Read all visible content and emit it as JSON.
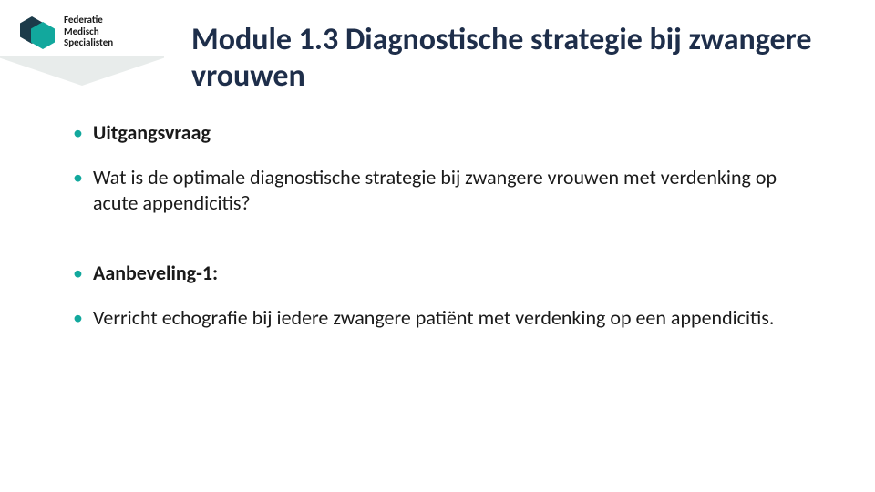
{
  "brand": {
    "line1": "Federatie",
    "line2": "Medisch",
    "line3": "Specialisten",
    "hex_dark": "#1c3b4a",
    "hex_teal": "#12a89d",
    "ribbon_color": "#e8eceb"
  },
  "title": "Module 1.3 Diagnostische strategie bij zwangere vrouwen",
  "title_color": "#1e2e4a",
  "title_fontsize": 34,
  "bullet_color": "#12a89d",
  "body_fontsize": 22,
  "bullets": [
    {
      "text": "Uitgangsvraag",
      "bold": true
    },
    {
      "text": "Wat is de optimale diagnostische strategie bij zwangere vrouwen met verdenking op acute appendicitis?",
      "bold": false
    },
    {
      "text": "Aanbeveling-1:",
      "bold": true,
      "gap_before": true
    },
    {
      "text": "Verricht echografie bij iedere zwangere patiënt met verdenking op een appendicitis.",
      "bold": false
    }
  ]
}
